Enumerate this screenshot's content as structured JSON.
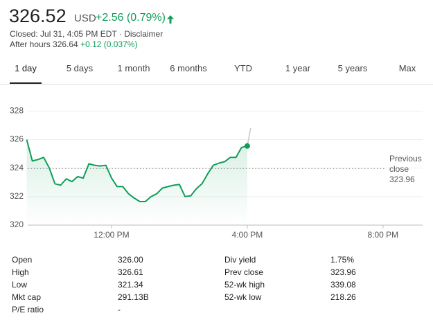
{
  "header": {
    "price": "326.52",
    "currency": "USD",
    "change": "+2.56 (0.79%)",
    "closed": "Closed: Jul 31, 4:05 PM EDT ·",
    "disclaimer": "Disclaimer",
    "after_hours_label": "After hours 326.64",
    "after_hours_change": "+0.12 (0.037%)"
  },
  "tabs": [
    "1 day",
    "5 days",
    "1 month",
    "6 months",
    "YTD",
    "1 year",
    "5 years",
    "Max"
  ],
  "selected_tab": 0,
  "chart_data": {
    "type": "line",
    "x": [
      570,
      580,
      590,
      600,
      610,
      620,
      630,
      640,
      650,
      660,
      670,
      680,
      690,
      700,
      710,
      720,
      730,
      740,
      750,
      760,
      770,
      780,
      790,
      800,
      810,
      820,
      830,
      840,
      850,
      860,
      870,
      880,
      890,
      900,
      910,
      920,
      930,
      940,
      950,
      960
    ],
    "values": [
      326.0,
      324.5,
      324.6,
      324.75,
      324.0,
      322.9,
      322.8,
      323.25,
      323.05,
      323.4,
      323.3,
      324.3,
      324.2,
      324.15,
      324.2,
      323.3,
      322.7,
      322.7,
      322.2,
      321.9,
      321.65,
      321.65,
      322.0,
      322.2,
      322.6,
      322.7,
      322.8,
      322.85,
      322.0,
      322.05,
      322.55,
      322.9,
      323.6,
      324.2,
      324.35,
      324.45,
      324.75,
      324.75,
      325.45,
      325.55
    ],
    "color": "#0f9d58",
    "after_hours": {
      "x": [
        960,
        966
      ],
      "values": [
        325.55,
        326.8
      ],
      "color": "#c8c8c8"
    },
    "previous_close": {
      "label": [
        "Previous",
        "close"
      ],
      "value": 323.96
    },
    "xlim": [
      570,
      1270
    ],
    "ylim": [
      320,
      328.6
    ],
    "xticks": [
      {
        "value": 720,
        "label": "12:00 PM"
      },
      {
        "value": 960,
        "label": "4:00 PM"
      },
      {
        "value": 1200,
        "label": "8:00 PM"
      }
    ],
    "yticks": [
      320,
      322,
      324,
      326,
      328
    ],
    "grid": true
  },
  "stats": {
    "rows": [
      [
        "Open",
        "326.00",
        "Div yield",
        "1.75%"
      ],
      [
        "High",
        "326.61",
        "Prev close",
        "323.96"
      ],
      [
        "Low",
        "321.34",
        "52-wk high",
        "339.08"
      ],
      [
        "Mkt cap",
        "291.13B",
        "52-wk low",
        "218.26"
      ],
      [
        "P/E ratio",
        "-"
      ]
    ]
  }
}
